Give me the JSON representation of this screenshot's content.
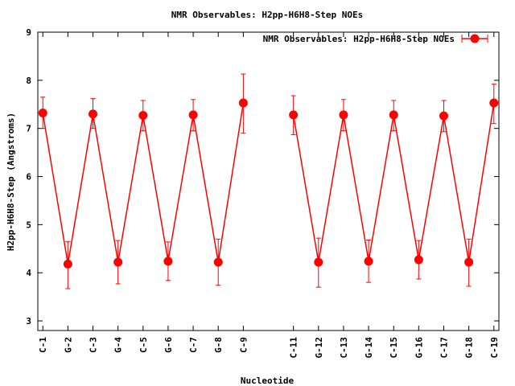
{
  "chart_data": {
    "type": "line",
    "title": "NMR Observables: H2pp-H6H8-Step NOEs",
    "xlabel": "Nucleotide",
    "ylabel": "H2pp-H6H8-Step (Angstroms)",
    "ylim": [
      2.8,
      9.0
    ],
    "yticks": [
      3,
      4,
      5,
      6,
      7,
      8,
      9
    ],
    "grid": false,
    "legend_position": "top-right",
    "series_color": "#ff0000",
    "categories": [
      "C-1",
      "G-2",
      "C-3",
      "G-4",
      "C-5",
      "G-6",
      "C-7",
      "G-8",
      "C-9",
      "C-11",
      "G-12",
      "C-13",
      "G-14",
      "C-15",
      "G-16",
      "C-17",
      "G-18",
      "C-19"
    ],
    "x": [
      1,
      2,
      3,
      4,
      5,
      6,
      7,
      8,
      9,
      11,
      12,
      13,
      14,
      15,
      16,
      17,
      18,
      19
    ],
    "series": [
      {
        "name": "NMR Observables: H2pp-H6H8-Step NOEs",
        "segments": [
          [
            0,
            8
          ],
          [
            9,
            17
          ]
        ],
        "values": [
          7.32,
          4.18,
          7.3,
          4.22,
          7.27,
          4.24,
          7.28,
          4.22,
          7.53,
          7.28,
          4.22,
          7.28,
          4.24,
          7.28,
          4.27,
          7.26,
          4.22,
          7.53
        ],
        "err_low": [
          7.0,
          3.67,
          7.0,
          3.77,
          6.95,
          3.84,
          6.95,
          3.74,
          6.9,
          6.87,
          3.7,
          6.95,
          3.8,
          6.95,
          3.87,
          6.93,
          3.72,
          7.1
        ],
        "err_high": [
          7.65,
          4.65,
          7.62,
          4.67,
          7.58,
          4.64,
          7.6,
          4.7,
          8.13,
          7.68,
          4.72,
          7.6,
          4.68,
          7.58,
          4.67,
          7.58,
          4.7,
          7.92
        ]
      }
    ]
  }
}
